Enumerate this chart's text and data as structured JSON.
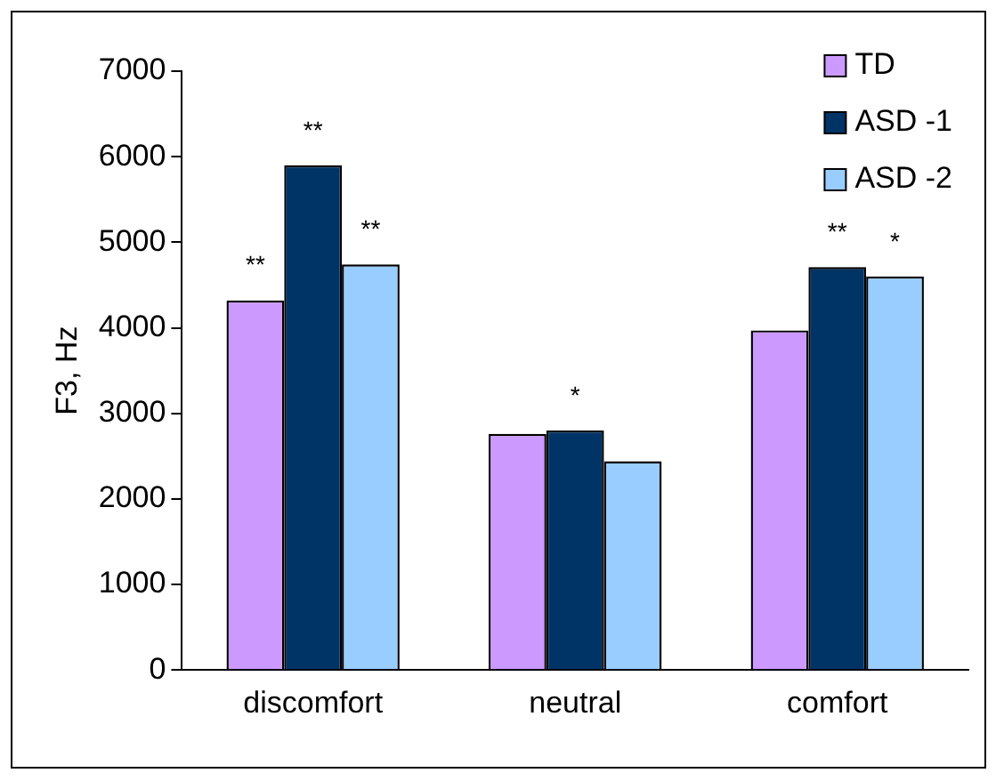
{
  "chart_data": {
    "type": "bar",
    "ylabel": "F3, Hz",
    "categories": [
      "discomfort",
      "neutral",
      "comfort"
    ],
    "series": [
      {
        "name": "TD",
        "color": "#cc99ff",
        "values": [
          4320,
          2760,
          3970
        ],
        "value_labels": [
          "**",
          null,
          null
        ]
      },
      {
        "name": "ASD -1",
        "color": "#003366",
        "values": [
          5900,
          2800,
          4710
        ],
        "value_labels": [
          "**",
          "*",
          "**"
        ]
      },
      {
        "name": "ASD -2",
        "color": "#99ccff",
        "values": [
          4740,
          2440,
          4600
        ],
        "value_labels": [
          "**",
          null,
          "*"
        ]
      }
    ],
    "ylim": [
      0,
      7000
    ],
    "yticks": [
      0,
      1000,
      2000,
      3000,
      4000,
      5000,
      6000,
      7000
    ],
    "grid": false,
    "legend": "top right"
  }
}
